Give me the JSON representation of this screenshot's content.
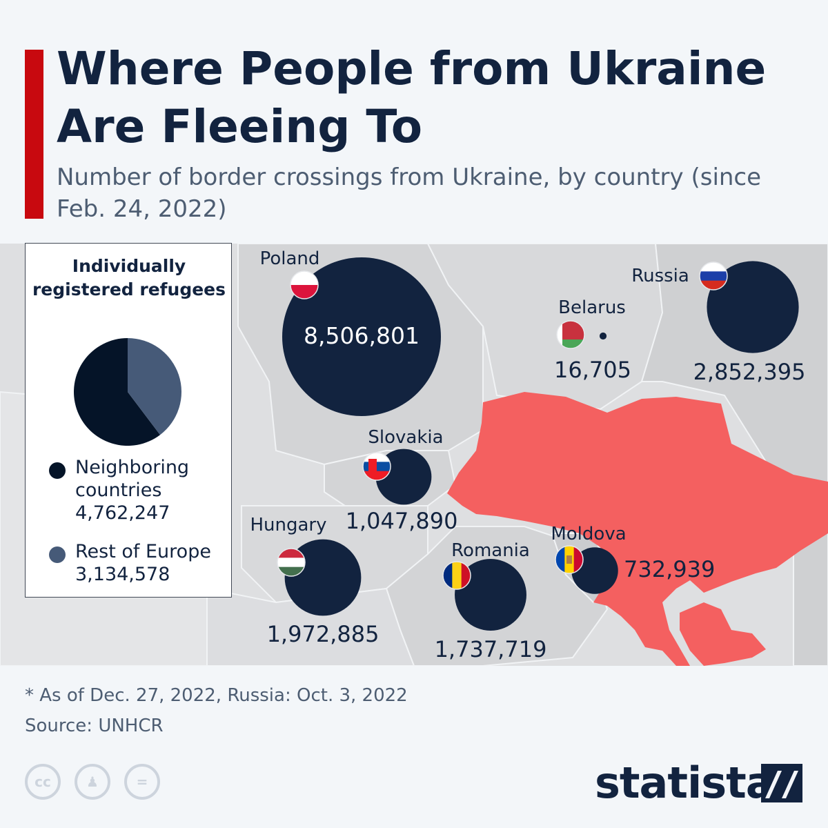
{
  "title": "Where People from Ukraine Are Fleeing To",
  "subtitle": "Number of border crossings from Ukraine, by country (since Feb. 24, 2022)",
  "legend": {
    "title": "Individually registered refugees",
    "items": [
      {
        "label": "Neighboring countries",
        "value": "4,762,247",
        "color": "#051428"
      },
      {
        "label": "Rest of Europe",
        "value": "3,134,578",
        "color": "#465a78"
      }
    ]
  },
  "colors": {
    "bubble": "#12233f",
    "ukraine": "#f46060",
    "land": "#d3d4d6",
    "accent": "#c8090f"
  },
  "countries": [
    {
      "name": "Poland",
      "value": 8506801,
      "value_label": "8,506,801",
      "flag": "poland-flag-icon"
    },
    {
      "name": "Russia",
      "value": 2852395,
      "value_label": "2,852,395",
      "flag": "russia-flag-icon"
    },
    {
      "name": "Belarus",
      "value": 16705,
      "value_label": "16,705",
      "flag": "belarus-flag-icon"
    },
    {
      "name": "Slovakia",
      "value": 1047890,
      "value_label": "1,047,890",
      "flag": "slovakia-flag-icon"
    },
    {
      "name": "Hungary",
      "value": 1972885,
      "value_label": "1,972,885",
      "flag": "hungary-flag-icon"
    },
    {
      "name": "Romania",
      "value": 1737719,
      "value_label": "1,737,719",
      "flag": "romania-flag-icon"
    },
    {
      "name": "Moldova",
      "value": 732939,
      "value_label": "732,939",
      "flag": "moldova-flag-icon"
    }
  ],
  "footnote": "* As of Dec. 27, 2022, Russia: Oct. 3, 2022",
  "source": "Source: UNHCR",
  "brand": "statista",
  "icons": [
    "creative-commons-icon",
    "attribution-icon",
    "no-derivatives-icon"
  ]
}
